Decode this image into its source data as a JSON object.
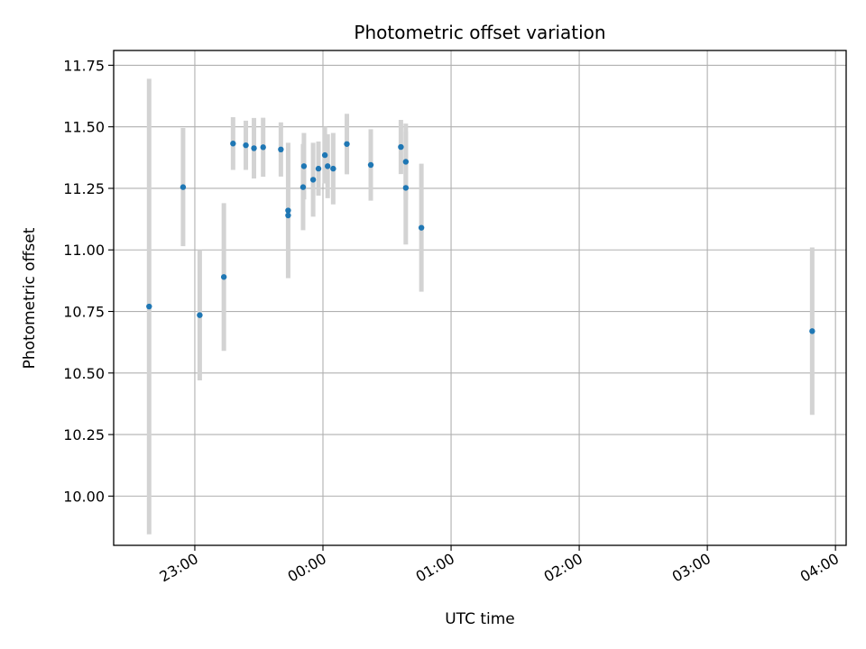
{
  "chart_data": {
    "type": "scatter",
    "title": "Photometric offset variation",
    "xlabel": "UTC time",
    "ylabel": "Photometric offset",
    "grid": true,
    "x_unit": "minutes relative to 00:00 UTC",
    "xlim": [
      -98,
      245
    ],
    "ylim": [
      9.8,
      11.81
    ],
    "x_ticks": [
      {
        "value": -60,
        "label": "23:00"
      },
      {
        "value": 0,
        "label": "00:00"
      },
      {
        "value": 60,
        "label": "01:00"
      },
      {
        "value": 120,
        "label": "02:00"
      },
      {
        "value": 180,
        "label": "03:00"
      },
      {
        "value": 240,
        "label": "04:00"
      }
    ],
    "y_ticks": [
      {
        "value": 10.0,
        "label": "10.00"
      },
      {
        "value": 10.25,
        "label": "10.25"
      },
      {
        "value": 10.5,
        "label": "10.50"
      },
      {
        "value": 10.75,
        "label": "10.75"
      },
      {
        "value": 11.0,
        "label": "11.00"
      },
      {
        "value": 11.25,
        "label": "11.25"
      },
      {
        "value": 11.5,
        "label": "11.50"
      },
      {
        "value": 11.75,
        "label": "11.75"
      }
    ],
    "marker_color": "#1f77b4",
    "errorbar_color": "#d3d3d3",
    "points": [
      {
        "x": -81.4,
        "y": 10.77,
        "err": 0.925
      },
      {
        "x": -65.5,
        "y": 11.255,
        "err": 0.24
      },
      {
        "x": -57.7,
        "y": 10.735,
        "err": 0.265
      },
      {
        "x": -46.4,
        "y": 10.89,
        "err": 0.3
      },
      {
        "x": -42.1,
        "y": 11.432,
        "err": 0.107
      },
      {
        "x": -36.1,
        "y": 11.425,
        "err": 0.1
      },
      {
        "x": -32.3,
        "y": 11.413,
        "err": 0.123
      },
      {
        "x": -28.0,
        "y": 11.417,
        "err": 0.12
      },
      {
        "x": -19.7,
        "y": 11.408,
        "err": 0.11
      },
      {
        "x": -16.3,
        "y": 11.16,
        "err": 0.275
      },
      {
        "x": -16.3,
        "y": 11.14,
        "err": 0.0
      },
      {
        "x": -8.9,
        "y": 11.34,
        "err": 0.135
      },
      {
        "x": -9.3,
        "y": 11.255,
        "err": 0.175
      },
      {
        "x": -4.6,
        "y": 11.285,
        "err": 0.15
      },
      {
        "x": -2.1,
        "y": 11.33,
        "err": 0.11
      },
      {
        "x": 0.9,
        "y": 11.385,
        "err": 0.115
      },
      {
        "x": 2.2,
        "y": 11.34,
        "err": 0.13
      },
      {
        "x": 4.8,
        "y": 11.33,
        "err": 0.145
      },
      {
        "x": 11.2,
        "y": 11.43,
        "err": 0.123
      },
      {
        "x": 22.4,
        "y": 11.345,
        "err": 0.145
      },
      {
        "x": 36.5,
        "y": 11.418,
        "err": 0.11
      },
      {
        "x": 38.8,
        "y": 11.358,
        "err": 0.155
      },
      {
        "x": 38.8,
        "y": 11.252,
        "err": 0.23
      },
      {
        "x": 46.1,
        "y": 11.09,
        "err": 0.26
      },
      {
        "x": 229.1,
        "y": 10.67,
        "err": 0.34
      }
    ]
  }
}
